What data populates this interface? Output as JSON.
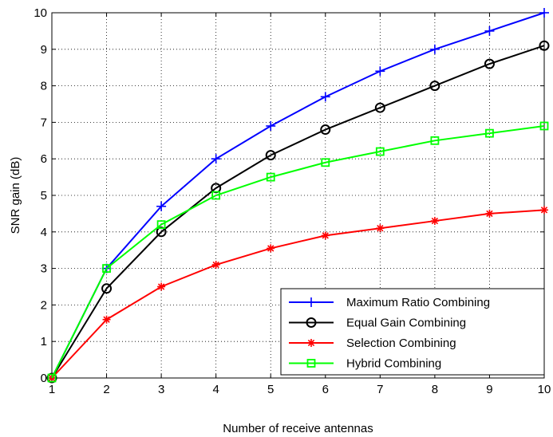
{
  "chart_data": {
    "type": "line",
    "xlabel": "Number of receive antennas",
    "ylabel": "SNR gain (dB)",
    "xlim": [
      1,
      10
    ],
    "ylim": [
      0,
      10
    ],
    "x": [
      1,
      2,
      3,
      4,
      5,
      6,
      7,
      8,
      9,
      10
    ],
    "xticks": [
      "1",
      "2",
      "3",
      "4",
      "5",
      "6",
      "7",
      "8",
      "9",
      "10"
    ],
    "yticks": [
      "0",
      "1",
      "2",
      "3",
      "4",
      "5",
      "6",
      "7",
      "8",
      "9",
      "10"
    ],
    "grid": true,
    "legend_position": "bottom-right",
    "series": [
      {
        "name": "Maximum Ratio Combining",
        "color": "#0000ff",
        "marker": "plus",
        "values": [
          0,
          3.0,
          4.7,
          6.0,
          6.9,
          7.7,
          8.4,
          9.0,
          9.5,
          10.0
        ]
      },
      {
        "name": "Equal Gain Combining",
        "color": "#000000",
        "marker": "circle",
        "values": [
          0,
          2.45,
          4.0,
          5.2,
          6.1,
          6.8,
          7.4,
          8.0,
          8.6,
          9.1
        ]
      },
      {
        "name": "Selection Combining",
        "color": "#ff0000",
        "marker": "asterisk",
        "values": [
          0,
          1.6,
          2.5,
          3.1,
          3.55,
          3.9,
          4.1,
          4.3,
          4.5,
          4.6
        ]
      },
      {
        "name": "Hybrid Combining",
        "color": "#00ff00",
        "marker": "square",
        "values": [
          0,
          3.0,
          4.2,
          5.0,
          5.5,
          5.9,
          6.2,
          6.5,
          6.7,
          6.9
        ]
      }
    ]
  }
}
